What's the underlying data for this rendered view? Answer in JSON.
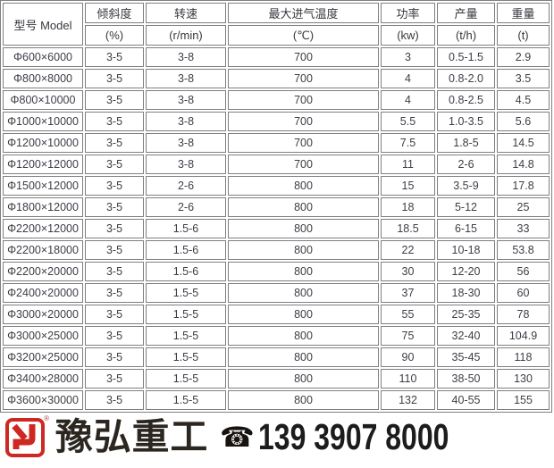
{
  "table": {
    "model_header": "型号  Model",
    "columns": [
      {
        "label": "倾斜度",
        "unit": "(%)"
      },
      {
        "label": "转速",
        "unit": "(r/min)"
      },
      {
        "label": "最大进气温度",
        "unit": "(℃)"
      },
      {
        "label": "功率",
        "unit": "(kw)"
      },
      {
        "label": "产量",
        "unit": "(t/h)"
      },
      {
        "label": "重量",
        "unit": "(t)"
      }
    ],
    "rows": [
      [
        "Φ600×6000",
        "3-5",
        "3-8",
        "700",
        "3",
        "0.5-1.5",
        "2.9"
      ],
      [
        "Φ800×8000",
        "3-5",
        "3-8",
        "700",
        "4",
        "0.8-2.0",
        "3.5"
      ],
      [
        "Φ800×10000",
        "3-5",
        "3-8",
        "700",
        "4",
        "0.8-2.5",
        "4.5"
      ],
      [
        "Φ1000×10000",
        "3-5",
        "3-8",
        "700",
        "5.5",
        "1.0-3.5",
        "5.6"
      ],
      [
        "Φ1200×10000",
        "3-5",
        "3-8",
        "700",
        "7.5",
        "1.8-5",
        "14.5"
      ],
      [
        "Φ1200×12000",
        "3-5",
        "3-8",
        "700",
        "11",
        "2-6",
        "14.8"
      ],
      [
        "Φ1500×12000",
        "3-5",
        "2-6",
        "800",
        "15",
        "3.5-9",
        "17.8"
      ],
      [
        "Φ1800×12000",
        "3-5",
        "2-6",
        "800",
        "18",
        "5-12",
        "25"
      ],
      [
        "Φ2200×12000",
        "3-5",
        "1.5-6",
        "800",
        "18.5",
        "6-15",
        "33"
      ],
      [
        "Φ2200×18000",
        "3-5",
        "1.5-6",
        "800",
        "22",
        "10-18",
        "53.8"
      ],
      [
        "Φ2200×20000",
        "3-5",
        "1.5-6",
        "800",
        "30",
        "12-20",
        "56"
      ],
      [
        "Φ2400×20000",
        "3-5",
        "1.5-5",
        "800",
        "37",
        "18-30",
        "60"
      ],
      [
        "Φ3000×20000",
        "3-5",
        "1.5-5",
        "800",
        "55",
        "25-35",
        "78"
      ],
      [
        "Φ3000×25000",
        "3-5",
        "1.5-5",
        "800",
        "75",
        "32-40",
        "104.9"
      ],
      [
        "Φ3200×25000",
        "3-5",
        "1.5-5",
        "800",
        "90",
        "35-45",
        "118"
      ],
      [
        "Φ3400×28000",
        "3-5",
        "1.5-5",
        "800",
        "110",
        "38-50",
        "130"
      ],
      [
        "Φ3600×30000",
        "3-5",
        "1.5-5",
        "800",
        "132",
        "40-55",
        "155"
      ]
    ]
  },
  "footer": {
    "brand": "豫弘重工",
    "registered_mark": "®",
    "phone_icon": "☎",
    "phone": "139 3907 8000",
    "logo_color": "#cf2822"
  }
}
